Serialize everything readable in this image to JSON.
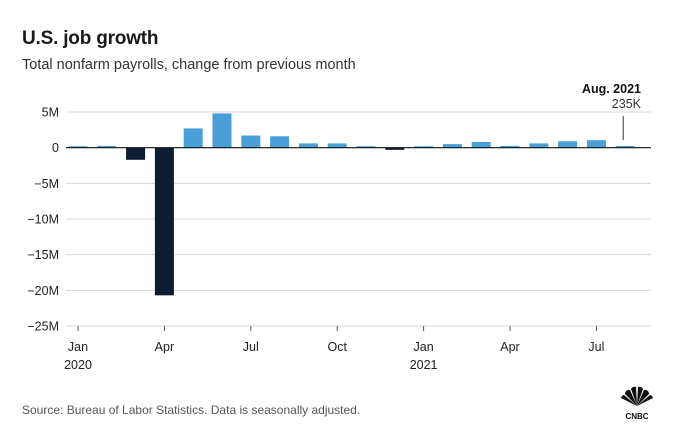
{
  "header": {
    "title": "U.S. job growth",
    "subtitle": "Total nonfarm payrolls, change from previous month"
  },
  "footer": {
    "source": "Source: Bureau of Labor Statistics. Data is seasonally adjusted.",
    "logo_text": "CNBC"
  },
  "chart_data": {
    "type": "bar",
    "title": "U.S. job growth",
    "subtitle": "Total nonfarm payrolls, change from previous month",
    "categories": [
      "Jan 2020",
      "Feb 2020",
      "Mar 2020",
      "Apr 2020",
      "May 2020",
      "Jun 2020",
      "Jul 2020",
      "Aug 2020",
      "Sep 2020",
      "Oct 2020",
      "Nov 2020",
      "Dec 2020",
      "Jan 2021",
      "Feb 2021",
      "Mar 2021",
      "Apr 2021",
      "May 2021",
      "Jun 2021",
      "Jul 2021",
      "Aug 2021"
    ],
    "values": [
      0.2,
      0.25,
      -1.7,
      -20.7,
      2.7,
      4.8,
      1.7,
      1.6,
      0.6,
      0.6,
      0.2,
      -0.3,
      0.2,
      0.5,
      0.8,
      0.25,
      0.6,
      0.9,
      1.05,
      0.235
    ],
    "unit": "M",
    "ylim": [
      -25,
      5
    ],
    "yticks": [
      5,
      0,
      -5,
      -10,
      -15,
      -20,
      -25
    ],
    "ytick_labels": [
      "5M",
      "0",
      "−5M",
      "−10M",
      "−15M",
      "−20M",
      "−25M"
    ],
    "xticks": [
      {
        "index": 0,
        "label": "Jan",
        "sublabel": "2020"
      },
      {
        "index": 3,
        "label": "Apr",
        "sublabel": ""
      },
      {
        "index": 6,
        "label": "Jul",
        "sublabel": ""
      },
      {
        "index": 9,
        "label": "Oct",
        "sublabel": ""
      },
      {
        "index": 12,
        "label": "Jan",
        "sublabel": "2021"
      },
      {
        "index": 15,
        "label": "Apr",
        "sublabel": ""
      },
      {
        "index": 18,
        "label": "Jul",
        "sublabel": ""
      }
    ],
    "annotation": {
      "index": 19,
      "title": "Aug. 2021",
      "value_label": "235K"
    },
    "colors": {
      "positive": "#4a9fd9",
      "negative": "#0c1c33",
      "grid": "#d9d9d9",
      "axis": "#111111"
    },
    "grid": true,
    "xlabel": "",
    "ylabel": ""
  }
}
